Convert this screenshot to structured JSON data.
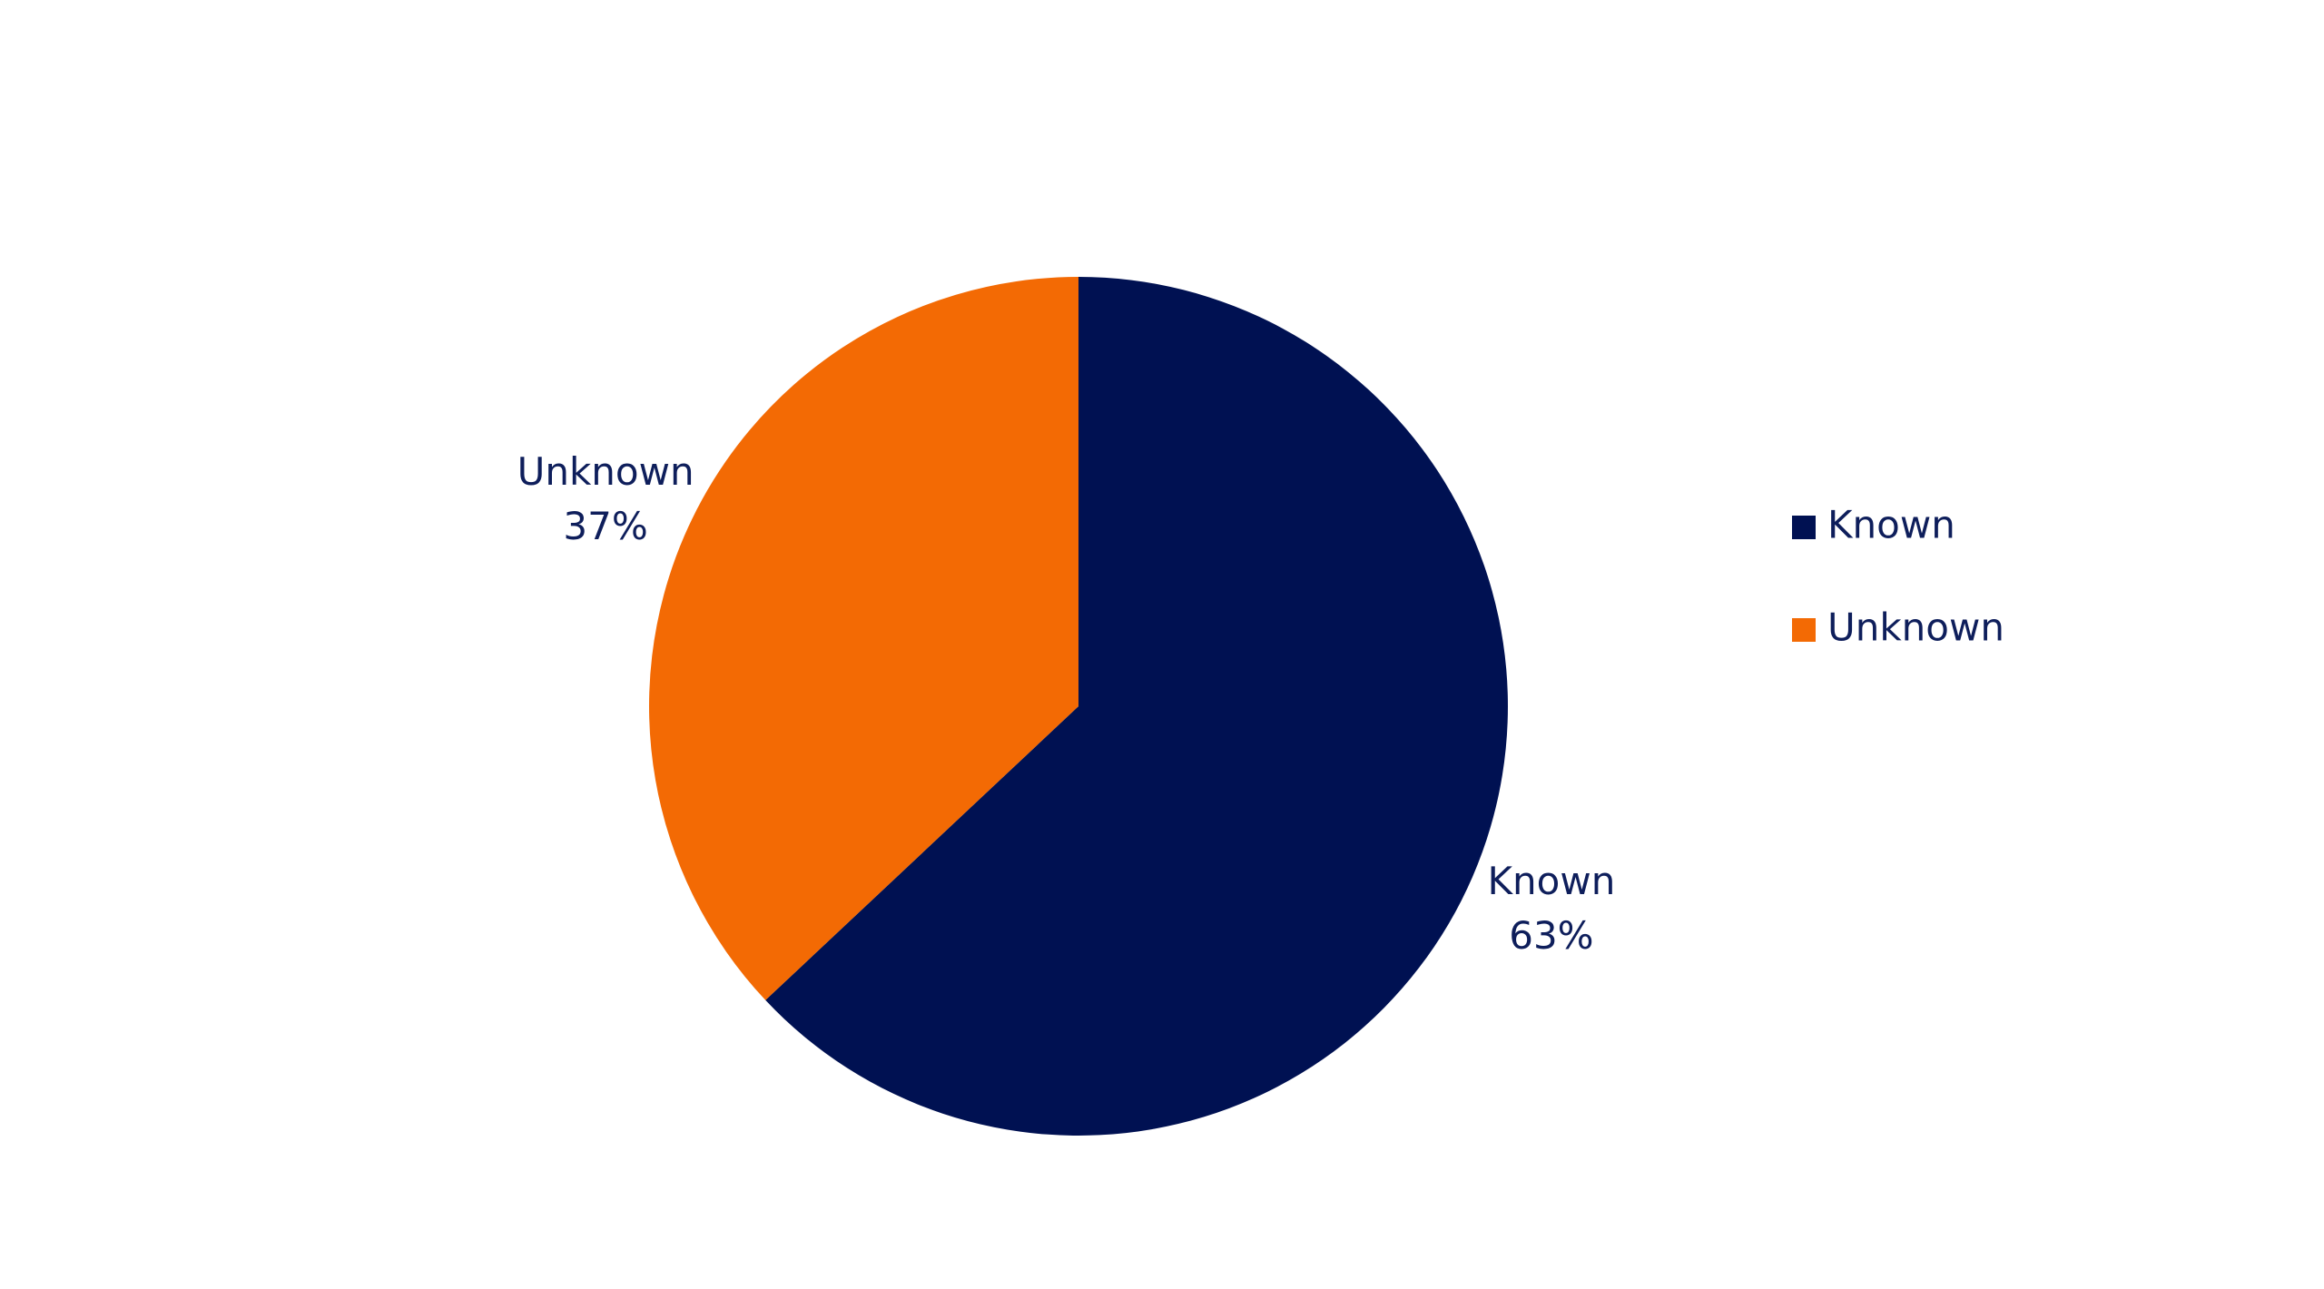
{
  "chart_data": {
    "type": "pie",
    "categories": [
      "Known",
      "Unknown"
    ],
    "values": [
      63,
      37
    ],
    "value_labels": [
      "63%",
      "37%"
    ],
    "colors": [
      "#001152",
      "#F36A04"
    ],
    "legend": "right"
  }
}
